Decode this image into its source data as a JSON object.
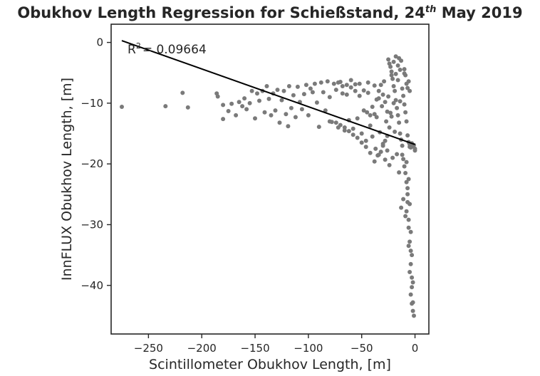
{
  "chart_data": {
    "type": "scatter",
    "title_prefix": "Obukhov Length Regression for Schießstand, 24",
    "title_sup": "th",
    "title_suffix": " May 2019",
    "xlabel": "Scintillometer Obukhov Length, [m]",
    "ylabel": "InnFLUX Obukhov Length, [m]",
    "xlim": [
      -285,
      13
    ],
    "ylim": [
      -48,
      3
    ],
    "xticks": [
      -250,
      -200,
      -150,
      -100,
      -50,
      0
    ],
    "yticks": [
      0,
      -10,
      -20,
      -30,
      -40
    ],
    "xtick_labels": [
      "−250",
      "−200",
      "−150",
      "−100",
      "−50",
      "0"
    ],
    "ytick_labels": [
      "0",
      "−10",
      "−20",
      "−30",
      "−40"
    ],
    "annotation_prefix": "R",
    "annotation_sup": "2",
    "annotation_value": "= 0.09664",
    "regression_line": {
      "x": [
        -275,
        0
      ],
      "y": [
        0.3,
        -16.8
      ]
    },
    "grid": false,
    "point_color": "#7a7a7a",
    "line_color": "#000000",
    "axis_color": "#262626",
    "points": [
      [
        -275,
        -10.6
      ],
      [
        -234,
        -10.5
      ],
      [
        -218,
        -8.3
      ],
      [
        -213,
        -10.7
      ],
      [
        -186,
        -8.4
      ],
      [
        -185,
        -8.9
      ],
      [
        -180,
        -10.3
      ],
      [
        -180,
        -12.6
      ],
      [
        -175,
        -11.3
      ],
      [
        -172,
        -10.1
      ],
      [
        -168,
        -12.0
      ],
      [
        -165,
        -9.8
      ],
      [
        -162,
        -10.5
      ],
      [
        -160,
        -9.2
      ],
      [
        -158,
        -11.0
      ],
      [
        -155,
        -10.0
      ],
      [
        -153,
        -8.0
      ],
      [
        -150,
        -12.5
      ],
      [
        -148,
        -8.4
      ],
      [
        -146,
        -9.6
      ],
      [
        -143,
        -8.0
      ],
      [
        -141,
        -11.5
      ],
      [
        -139,
        -7.2
      ],
      [
        -137,
        -9.3
      ],
      [
        -135,
        -12.0
      ],
      [
        -133,
        -8.4
      ],
      [
        -131,
        -11.2
      ],
      [
        -129,
        -7.8
      ],
      [
        -127,
        -13.2
      ],
      [
        -125,
        -9.5
      ],
      [
        -123,
        -8.0
      ],
      [
        -121,
        -11.8
      ],
      [
        -119,
        -13.8
      ],
      [
        -118,
        -7.2
      ],
      [
        -116,
        -10.8
      ],
      [
        -114,
        -8.7
      ],
      [
        -112,
        -12.3
      ],
      [
        -110,
        -7.3
      ],
      [
        -108,
        -9.8
      ],
      [
        -106,
        -11.0
      ],
      [
        -104,
        -8.5
      ],
      [
        -102,
        -7.0
      ],
      [
        -100,
        -12.0
      ],
      [
        -98,
        -7.6
      ],
      [
        -96,
        -8.2
      ],
      [
        -94,
        -6.8
      ],
      [
        -92,
        -9.9
      ],
      [
        -90,
        -13.9
      ],
      [
        -88,
        -6.6
      ],
      [
        -86,
        -8.2
      ],
      [
        -84,
        -11.2
      ],
      [
        -82,
        -6.4
      ],
      [
        -80,
        -9.0
      ],
      [
        -78,
        -13.1
      ],
      [
        -76,
        -6.8
      ],
      [
        -74,
        -7.8
      ],
      [
        -72,
        -14.0
      ],
      [
        -70,
        -6.5
      ],
      [
        -68,
        -8.4
      ],
      [
        -66,
        -14.5
      ],
      [
        -64,
        -7.0
      ],
      [
        -62,
        -12.8
      ],
      [
        -60,
        -7.4
      ],
      [
        -58,
        -14.2
      ],
      [
        -56,
        -8.0
      ],
      [
        -54,
        -12.5
      ],
      [
        -52,
        -6.8
      ],
      [
        -50,
        -15.0
      ],
      [
        -48,
        -11.2
      ],
      [
        -46,
        -16.2
      ],
      [
        -44,
        -8.3
      ],
      [
        -42,
        -13.7
      ],
      [
        -40,
        -15.5
      ],
      [
        -38,
        -7.1
      ],
      [
        -37,
        -17.5
      ],
      [
        -36,
        -12.3
      ],
      [
        -35,
        -18.6
      ],
      [
        -34,
        -9.2
      ],
      [
        -33,
        -14.8
      ],
      [
        -32,
        -18.0
      ],
      [
        -31,
        -10.5
      ],
      [
        -30,
        -16.7
      ],
      [
        -29,
        -6.4
      ],
      [
        -28,
        -19.3
      ],
      [
        -27,
        -13.0
      ],
      [
        -26,
        -17.8
      ],
      [
        -25,
        -8.9
      ],
      [
        -24,
        -20.2
      ],
      [
        -23,
        -11.6
      ],
      [
        -22,
        -4.8
      ],
      [
        -21,
        -19.0
      ],
      [
        -20,
        -3.2
      ],
      [
        -19,
        -14.7
      ],
      [
        -18,
        -2.3
      ],
      [
        -17,
        -18.4
      ],
      [
        -16,
        -6.2
      ],
      [
        -15,
        -21.4
      ],
      [
        -14,
        -9.7
      ],
      [
        -13,
        -27.2
      ],
      [
        -12,
        -17.0
      ],
      [
        -11,
        -25.8
      ],
      [
        -10,
        -5.1
      ],
      [
        -9,
        -28.6
      ],
      [
        -8,
        -19.7
      ],
      [
        -7,
        -24.0
      ],
      [
        -6,
        -30.5
      ],
      [
        -5,
        -17.2
      ],
      [
        -4,
        -34.3
      ],
      [
        -3,
        -38.7
      ],
      [
        -2,
        -42.8
      ],
      [
        -1,
        -45.0
      ],
      [
        0,
        -17.8
      ],
      [
        -4,
        -36.5
      ],
      [
        -3,
        -40.3
      ],
      [
        -2,
        -44.2
      ],
      [
        -5,
        -32.8
      ],
      [
        -6,
        -29.2
      ],
      [
        -7,
        -26.3
      ],
      [
        -8,
        -23.0
      ],
      [
        -9,
        -21.5
      ],
      [
        -10,
        -20.4
      ],
      [
        -11,
        -19.2
      ],
      [
        -12,
        -18.5
      ],
      [
        -13,
        -16.0
      ],
      [
        -14,
        -15.0
      ],
      [
        -15,
        -13.2
      ],
      [
        -16,
        -12.0
      ],
      [
        -17,
        -10.8
      ],
      [
        -18,
        -9.5
      ],
      [
        -19,
        -8.0
      ],
      [
        -20,
        -7.2
      ],
      [
        -21,
        -6.0
      ],
      [
        -22,
        -5.4
      ],
      [
        -23,
        -4.0
      ],
      [
        -24,
        -3.5
      ],
      [
        -25,
        -2.8
      ],
      [
        -12,
        -7.6
      ],
      [
        -13,
        -3.0
      ],
      [
        -14,
        -4.5
      ],
      [
        -15,
        -2.6
      ],
      [
        -11,
        -8.8
      ],
      [
        -10,
        -10.2
      ],
      [
        -9,
        -11.5
      ],
      [
        -8,
        -13.0
      ],
      [
        -7,
        -15.3
      ],
      [
        -6,
        -16.4
      ],
      [
        -5,
        -16.8
      ],
      [
        -4,
        -17.3
      ],
      [
        -3,
        -16.6
      ],
      [
        -2,
        -17.1
      ],
      [
        -1,
        -16.9
      ],
      [
        0,
        -17.5
      ],
      [
        -16,
        -3.8
      ],
      [
        -18,
        -5.2
      ],
      [
        -20,
        -10.0
      ],
      [
        -22,
        -12.2
      ],
      [
        -24,
        -14.0
      ],
      [
        -26,
        -15.4
      ],
      [
        -28,
        -16.2
      ],
      [
        -30,
        -17.0
      ],
      [
        -34,
        -18.5
      ],
      [
        -38,
        -19.6
      ],
      [
        -42,
        -18.2
      ],
      [
        -46,
        -17.2
      ],
      [
        -50,
        -16.5
      ],
      [
        -54,
        -15.7
      ],
      [
        -58,
        -15.2
      ],
      [
        -62,
        -14.6
      ],
      [
        -66,
        -14.0
      ],
      [
        -70,
        -13.6
      ],
      [
        -74,
        -13.2
      ],
      [
        -80,
        -13.0
      ],
      [
        -45,
        -11.5
      ],
      [
        -42,
        -12.0
      ],
      [
        -40,
        -10.6
      ],
      [
        -38,
        -11.8
      ],
      [
        -36,
        -9.4
      ],
      [
        -34,
        -8.0
      ],
      [
        -32,
        -7.0
      ],
      [
        -30,
        -8.6
      ],
      [
        -28,
        -9.8
      ],
      [
        -26,
        -11.4
      ],
      [
        -44,
        -6.6
      ],
      [
        -48,
        -7.9
      ],
      [
        -52,
        -8.8
      ],
      [
        -56,
        -6.9
      ],
      [
        -60,
        -6.2
      ],
      [
        -64,
        -8.6
      ],
      [
        -68,
        -7.2
      ],
      [
        -72,
        -6.6
      ],
      [
        -8,
        -6.8
      ],
      [
        -7,
        -7.5
      ],
      [
        -6,
        -6.4
      ],
      [
        -5,
        -8.0
      ],
      [
        -9,
        -5.4
      ],
      [
        -10,
        -4.4
      ],
      [
        -6,
        -22.5
      ],
      [
        -7,
        -25.0
      ],
      [
        -8,
        -27.8
      ],
      [
        -5,
        -26.6
      ],
      [
        -4,
        -31.2
      ],
      [
        -3,
        -35.0
      ],
      [
        -2,
        -39.5
      ],
      [
        -3,
        -43.0
      ],
      [
        -4,
        -41.5
      ],
      [
        -5,
        -37.8
      ],
      [
        -6,
        -33.5
      ]
    ]
  }
}
